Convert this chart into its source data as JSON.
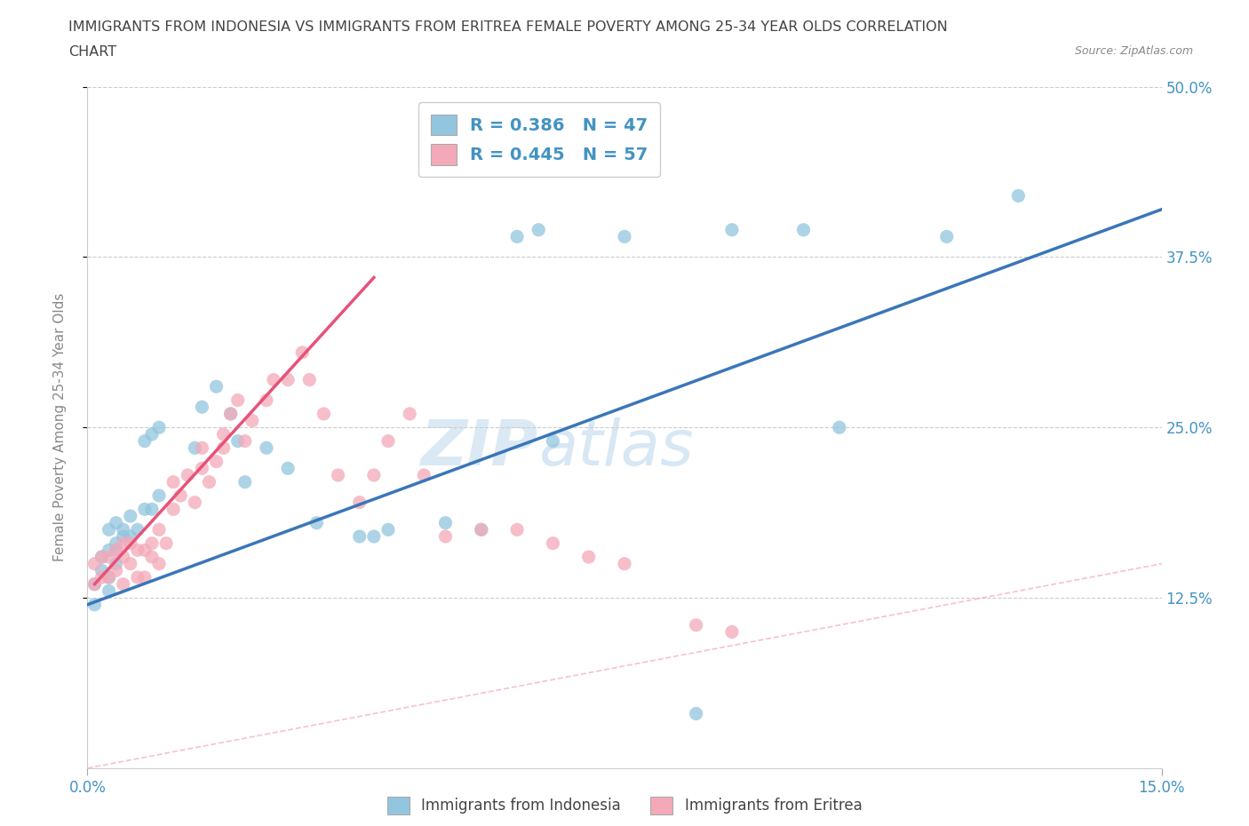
{
  "title_line1": "IMMIGRANTS FROM INDONESIA VS IMMIGRANTS FROM ERITREA FEMALE POVERTY AMONG 25-34 YEAR OLDS CORRELATION",
  "title_line2": "CHART",
  "source_text": "Source: ZipAtlas.com",
  "ylabel": "Female Poverty Among 25-34 Year Olds",
  "xlim": [
    0.0,
    0.15
  ],
  "ylim": [
    0.0,
    0.5
  ],
  "ytick_labels": [
    "12.5%",
    "25.0%",
    "37.5%",
    "50.0%"
  ],
  "ytick_values": [
    0.125,
    0.25,
    0.375,
    0.5
  ],
  "xtick_values": [
    0.0,
    0.15
  ],
  "xtick_labels": [
    "0.0%",
    "15.0%"
  ],
  "legend_labels": [
    "Immigrants from Indonesia",
    "Immigrants from Eritrea"
  ],
  "R_indonesia": 0.386,
  "N_indonesia": 47,
  "R_eritrea": 0.445,
  "N_eritrea": 57,
  "color_indonesia": "#92C5DE",
  "color_eritrea": "#F4A9B8",
  "line_color_indonesia": "#3A76B8",
  "line_color_eritrea": "#E8517A",
  "diagonal_color": "#F4A9B8",
  "watermark_zip": "ZIP",
  "watermark_atlas": "atlas",
  "background_color": "#FFFFFF",
  "indonesia_x": [
    0.001,
    0.003,
    0.001,
    0.003,
    0.002,
    0.004,
    0.002,
    0.004,
    0.003,
    0.004,
    0.003,
    0.005,
    0.004,
    0.005,
    0.006,
    0.006,
    0.007,
    0.008,
    0.009,
    0.01,
    0.008,
    0.009,
    0.01,
    0.015,
    0.016,
    0.018,
    0.02,
    0.022,
    0.021,
    0.025,
    0.028,
    0.032,
    0.038,
    0.04,
    0.042,
    0.05,
    0.055,
    0.06,
    0.063,
    0.065,
    0.075,
    0.085,
    0.09,
    0.1,
    0.105,
    0.12,
    0.13
  ],
  "indonesia_y": [
    0.135,
    0.13,
    0.12,
    0.14,
    0.155,
    0.16,
    0.145,
    0.15,
    0.16,
    0.165,
    0.175,
    0.17,
    0.18,
    0.175,
    0.17,
    0.185,
    0.175,
    0.19,
    0.19,
    0.2,
    0.24,
    0.245,
    0.25,
    0.235,
    0.265,
    0.28,
    0.26,
    0.21,
    0.24,
    0.235,
    0.22,
    0.18,
    0.17,
    0.17,
    0.175,
    0.18,
    0.175,
    0.39,
    0.395,
    0.24,
    0.39,
    0.04,
    0.395,
    0.395,
    0.25,
    0.39,
    0.42
  ],
  "eritrea_x": [
    0.001,
    0.001,
    0.002,
    0.002,
    0.003,
    0.003,
    0.004,
    0.004,
    0.005,
    0.005,
    0.005,
    0.006,
    0.006,
    0.007,
    0.007,
    0.008,
    0.008,
    0.009,
    0.009,
    0.01,
    0.01,
    0.011,
    0.012,
    0.012,
    0.013,
    0.014,
    0.015,
    0.016,
    0.016,
    0.017,
    0.018,
    0.019,
    0.019,
    0.02,
    0.021,
    0.022,
    0.023,
    0.025,
    0.026,
    0.028,
    0.03,
    0.031,
    0.033,
    0.035,
    0.038,
    0.04,
    0.042,
    0.045,
    0.047,
    0.05,
    0.055,
    0.06,
    0.065,
    0.07,
    0.075,
    0.085,
    0.09
  ],
  "eritrea_y": [
    0.135,
    0.15,
    0.14,
    0.155,
    0.14,
    0.155,
    0.145,
    0.16,
    0.135,
    0.155,
    0.165,
    0.15,
    0.165,
    0.14,
    0.16,
    0.14,
    0.16,
    0.155,
    0.165,
    0.15,
    0.175,
    0.165,
    0.19,
    0.21,
    0.2,
    0.215,
    0.195,
    0.22,
    0.235,
    0.21,
    0.225,
    0.235,
    0.245,
    0.26,
    0.27,
    0.24,
    0.255,
    0.27,
    0.285,
    0.285,
    0.305,
    0.285,
    0.26,
    0.215,
    0.195,
    0.215,
    0.24,
    0.26,
    0.215,
    0.17,
    0.175,
    0.175,
    0.165,
    0.155,
    0.15,
    0.105,
    0.1
  ],
  "ind_line_x0": 0.0,
  "ind_line_y0": 0.12,
  "ind_line_x1": 0.15,
  "ind_line_y1": 0.41,
  "eri_line_x0": 0.001,
  "eri_line_y0": 0.135,
  "eri_line_x1": 0.04,
  "eri_line_y1": 0.36
}
